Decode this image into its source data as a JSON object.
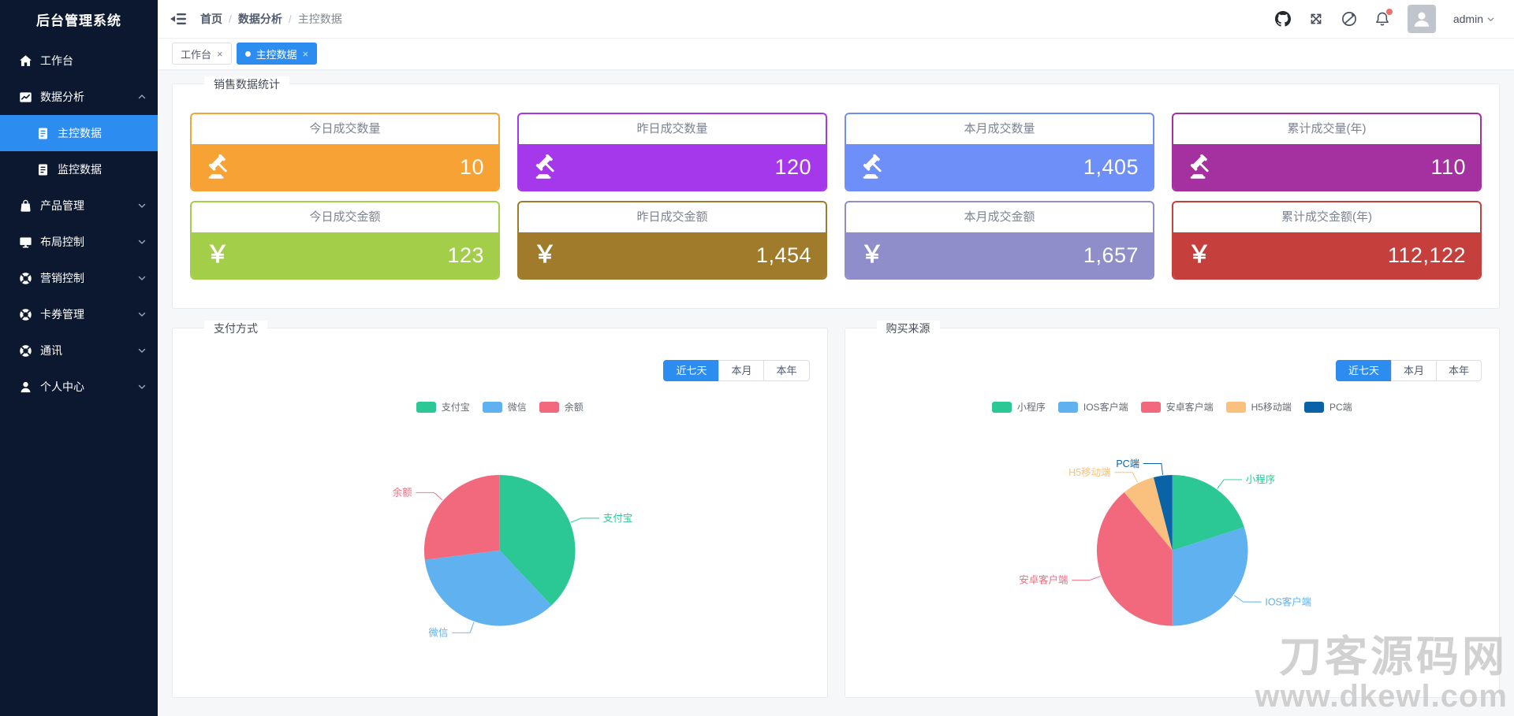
{
  "app": {
    "title": "后台管理系统"
  },
  "header": {
    "collapse_icon": "collapse-menu-icon",
    "breadcrumb": {
      "separator": "/",
      "items": [
        {
          "label": "首页",
          "current": false
        },
        {
          "label": "数据分析",
          "current": false
        },
        {
          "label": "主控数据",
          "current": true
        }
      ]
    },
    "action_icons": [
      "github-icon",
      "fullscreen-icon",
      "slash-circle-icon",
      "bell-icon"
    ],
    "notification_dot": true,
    "user": {
      "name": "admin"
    }
  },
  "tabs": {
    "items": [
      {
        "label": "工作台",
        "active": false,
        "closable": true
      },
      {
        "label": "主控数据",
        "active": true,
        "closable": true
      }
    ]
  },
  "sidebar": {
    "items": [
      {
        "label": "工作台",
        "icon": "home-icon",
        "level": 1
      },
      {
        "label": "数据分析",
        "icon": "analysis-icon",
        "level": 1,
        "expanded": true
      },
      {
        "label": "主控数据",
        "icon": "document-icon",
        "level": 2,
        "active": true
      },
      {
        "label": "监控数据",
        "icon": "document-icon",
        "level": 2
      },
      {
        "label": "产品管理",
        "icon": "bag-icon",
        "level": 1,
        "expandable": true
      },
      {
        "label": "布局控制",
        "icon": "monitor-icon",
        "level": 1,
        "expandable": true
      },
      {
        "label": "营销控制",
        "icon": "ring-icon",
        "level": 1,
        "expandable": true
      },
      {
        "label": "卡券管理",
        "icon": "ring-icon",
        "level": 1,
        "expandable": true
      },
      {
        "label": "通讯",
        "icon": "ring-icon",
        "level": 1,
        "expandable": true
      },
      {
        "label": "个人中心",
        "icon": "user-icon",
        "level": 1,
        "expandable": true
      }
    ]
  },
  "stats": {
    "title": "销售数据统计",
    "currency_symbol": "￥",
    "cards": [
      {
        "title": "今日成交数量",
        "value": "10",
        "color": "#f7a234",
        "icon": "gavel-icon"
      },
      {
        "title": "昨日成交数量",
        "value": "120",
        "color": "#a438ea",
        "icon": "gavel-icon"
      },
      {
        "title": "本月成交数量",
        "value": "1,405",
        "color": "#6f8ff8",
        "icon": "gavel-icon"
      },
      {
        "title": "累计成交量(年)",
        "value": "110",
        "color": "#a5309f",
        "icon": "gavel-icon"
      },
      {
        "title": "今日成交金额",
        "value": "123",
        "color": "#a2ce4a",
        "icon": "yen-icon"
      },
      {
        "title": "昨日成交金额",
        "value": "1,454",
        "color": "#9f7b2b",
        "icon": "yen-icon"
      },
      {
        "title": "本月成交金额",
        "value": "1,657",
        "color": "#8f8ecb",
        "icon": "yen-icon"
      },
      {
        "title": "累计成交金额(年)",
        "value": "112,122",
        "color": "#c5403c",
        "icon": "yen-icon"
      }
    ]
  },
  "charts": {
    "panels": [
      {
        "title": "支付方式",
        "range_buttons": [
          {
            "label": "近七天",
            "active": true
          },
          {
            "label": "本月",
            "active": false
          },
          {
            "label": "本年",
            "active": false
          }
        ]
      },
      {
        "title": "购买来源",
        "range_buttons": [
          {
            "label": "近七天",
            "active": true
          },
          {
            "label": "本月",
            "active": false
          },
          {
            "label": "本年",
            "active": false
          }
        ]
      }
    ]
  },
  "chart_data": [
    {
      "type": "pie",
      "title": "支付方式",
      "legend_position": "top",
      "legend": [
        "支付宝",
        "微信",
        "余额"
      ],
      "series": [
        {
          "name": "支付宝",
          "value": 38,
          "color": "#2bc795"
        },
        {
          "name": "微信",
          "value": 35,
          "color": "#60b1f0"
        },
        {
          "name": "余额",
          "value": 27,
          "color": "#f2697e"
        }
      ]
    },
    {
      "type": "pie",
      "title": "购买来源",
      "legend_position": "top",
      "legend": [
        "小程序",
        "IOS客户端",
        "安卓客户端",
        "H5移动端",
        "PC端"
      ],
      "series": [
        {
          "name": "小程序",
          "value": 20,
          "color": "#2bc795"
        },
        {
          "name": "IOS客户端",
          "value": 30,
          "color": "#60b1f0"
        },
        {
          "name": "安卓客户端",
          "value": 39,
          "color": "#f2697e"
        },
        {
          "name": "H5移动端",
          "value": 7,
          "color": "#f9c07e"
        },
        {
          "name": "PC端",
          "value": 4,
          "color": "#0b63a7"
        }
      ]
    }
  ],
  "watermark": {
    "line1": "刀客源码网",
    "line2": "www.dkewl.com"
  }
}
